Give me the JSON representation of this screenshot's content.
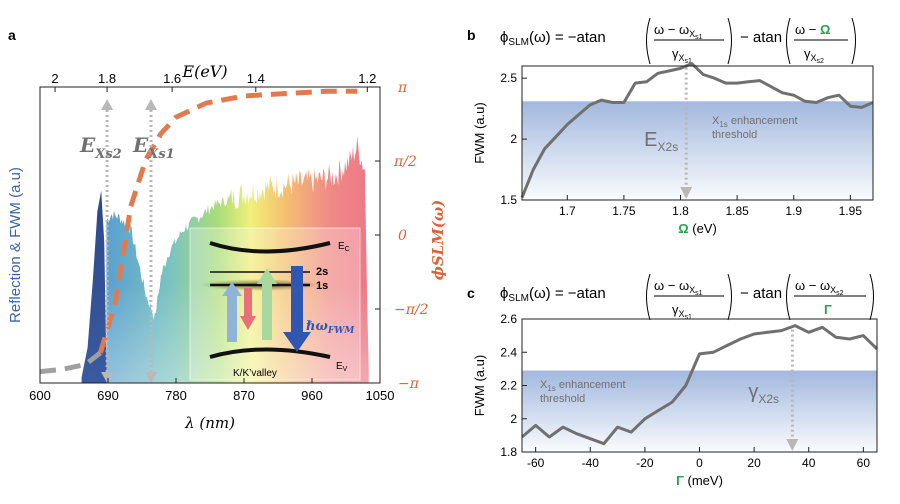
{
  "chart_data": [
    {
      "panel": "a",
      "type": "area",
      "xlabel": "λ (nm)",
      "top_xlabel": "E(eV)",
      "ylabel_left": "Reflection & FWM (a.u)",
      "ylabel_right": "ϕSLM(ω)",
      "xlim": [
        600,
        1050
      ],
      "x_ticks": [
        "600",
        "690",
        "780",
        "870",
        "960",
        "1050"
      ],
      "top_ticks": [
        "2",
        "1.8",
        "1.6",
        "1.4",
        "1.2"
      ],
      "top_tick_values": [
        2,
        1.8,
        1.6,
        1.4,
        1.2
      ],
      "right_ticks": [
        "π",
        "π/2",
        "0",
        "−π/2",
        "−π"
      ],
      "right_tick_values": [
        3.1416,
        1.5708,
        0,
        -1.5708,
        -3.1416
      ],
      "fwm_peak": {
        "x": [
          655,
          663,
          670,
          676,
          681,
          685,
          688
        ],
        "y": [
          0.02,
          0.12,
          0.35,
          0.58,
          0.65,
          0.48,
          0.05
        ]
      },
      "reflection": {
        "x": [
          688,
          695,
          705,
          720,
          740,
          752,
          760,
          770,
          790,
          810,
          830,
          850,
          870,
          900,
          930,
          960,
          990,
          1010,
          1020,
          1030,
          1035
        ],
        "y": [
          0.55,
          0.57,
          0.56,
          0.52,
          0.3,
          0.22,
          0.36,
          0.44,
          0.52,
          0.56,
          0.6,
          0.62,
          0.64,
          0.66,
          0.67,
          0.68,
          0.7,
          0.75,
          0.8,
          0.72,
          0.05
        ]
      },
      "phase_curve": {
        "x": [
          600,
          630,
          660,
          680,
          700,
          720,
          740,
          760,
          780,
          820,
          870,
          920,
          980,
          1020
        ],
        "y": [
          -2.9,
          -2.85,
          -2.75,
          -2.5,
          -1.4,
          0.6,
          1.6,
          2.15,
          2.5,
          2.8,
          2.95,
          3.0,
          3.05,
          3.05
        ]
      },
      "annotations": {
        "ex2": {
          "label": "E",
          "sub": "Xs2",
          "x": 1.8
        },
        "ex1": {
          "label": "E",
          "sub": "Xs1",
          "x": 1.66
        }
      },
      "inset": {
        "ec": "E",
        "ec_sub": "C",
        "ev": "E",
        "ev_sub": "V",
        "s2": "2s",
        "s1": "1s",
        "fwm_label": "ℏω",
        "fwm_sub": "FWM",
        "valley": "K/K’valley"
      }
    },
    {
      "panel": "b",
      "type": "line",
      "title_formula": "ϕSLM(ω) = −atan((ω − ωXs1)/γXs1) − atan((ω − Ω)/γXs2)",
      "xlabel_sym": "Ω",
      "xlabel_unit": " (eV)",
      "ylabel": "FWM (a.u)",
      "xlim": [
        1.66,
        1.97
      ],
      "ylim": [
        1.5,
        2.6
      ],
      "x_ticks": [
        "1.7",
        "1.75",
        "1.8",
        "1.85",
        "1.9",
        "1.95"
      ],
      "x_tick_values": [
        1.7,
        1.75,
        1.8,
        1.85,
        1.9,
        1.95
      ],
      "y_ticks": [
        "1.5",
        "2",
        "2.5"
      ],
      "y_tick_values": [
        1.5,
        2.0,
        2.5
      ],
      "threshold": 2.31,
      "threshold_label_main": "X",
      "threshold_label_sub": "1s",
      "threshold_label_rest": " enhancement",
      "threshold_label_line2": "threshold",
      "marker": {
        "x": 1.805,
        "label": "E",
        "sub": "X2s"
      },
      "x": [
        1.66,
        1.67,
        1.68,
        1.69,
        1.7,
        1.71,
        1.72,
        1.73,
        1.74,
        1.75,
        1.76,
        1.77,
        1.78,
        1.79,
        1.8,
        1.81,
        1.82,
        1.83,
        1.84,
        1.85,
        1.86,
        1.87,
        1.88,
        1.89,
        1.9,
        1.91,
        1.92,
        1.93,
        1.94,
        1.95,
        1.96,
        1.97
      ],
      "y": [
        1.52,
        1.75,
        1.92,
        2.02,
        2.12,
        2.2,
        2.28,
        2.32,
        2.3,
        2.3,
        2.46,
        2.47,
        2.54,
        2.56,
        2.58,
        2.62,
        2.53,
        2.5,
        2.46,
        2.46,
        2.47,
        2.48,
        2.43,
        2.38,
        2.36,
        2.31,
        2.3,
        2.34,
        2.36,
        2.27,
        2.26,
        2.3
      ]
    },
    {
      "panel": "c",
      "type": "line",
      "title_formula": "ϕSLM(ω) = −atan((ω − ωXs1)/γXs1) − atan((ω − ωXs2)/Γ)",
      "xlabel_sym": "Γ",
      "xlabel_unit": " (meV)",
      "ylabel": "FWM (a.u)",
      "xlim": [
        -65,
        65
      ],
      "ylim": [
        1.8,
        2.6
      ],
      "x_ticks": [
        "-60",
        "-40",
        "-20",
        "0",
        "20",
        "40",
        "60"
      ],
      "x_tick_values": [
        -60,
        -40,
        -20,
        0,
        20,
        40,
        60
      ],
      "y_ticks": [
        "1.8",
        "2",
        "2.2",
        "2.4",
        "2.6"
      ],
      "y_tick_values": [
        1.8,
        2.0,
        2.2,
        2.4,
        2.6
      ],
      "threshold": 2.29,
      "threshold_label_main": "X",
      "threshold_label_sub": "1s",
      "threshold_label_rest": " enhancement",
      "threshold_label_line2": "threshold",
      "marker": {
        "x": 34,
        "label": "γ",
        "sub": "X2s"
      },
      "x": [
        -65,
        -60,
        -55,
        -50,
        -45,
        -40,
        -35,
        -30,
        -25,
        -20,
        -15,
        -10,
        -5,
        0,
        5,
        10,
        15,
        20,
        25,
        30,
        35,
        40,
        45,
        50,
        55,
        60,
        65
      ],
      "y": [
        1.89,
        1.96,
        1.89,
        1.95,
        1.91,
        1.88,
        1.85,
        1.95,
        1.92,
        2.0,
        2.05,
        2.1,
        2.2,
        2.39,
        2.4,
        2.44,
        2.48,
        2.51,
        2.52,
        2.53,
        2.56,
        2.52,
        2.55,
        2.49,
        2.48,
        2.5,
        2.42
      ]
    }
  ],
  "labels": {
    "a": "a",
    "b": "b",
    "c": "c"
  },
  "colors": {
    "phase": "#e07b4f",
    "fwm": "#2c4a8a",
    "line": "#707070",
    "threshold": "#9db4dc",
    "arrow": "#b8b8b8",
    "green": "#2aa050",
    "dark_blue": "#2f56b0",
    "axis_blue": "#3b63a6"
  }
}
